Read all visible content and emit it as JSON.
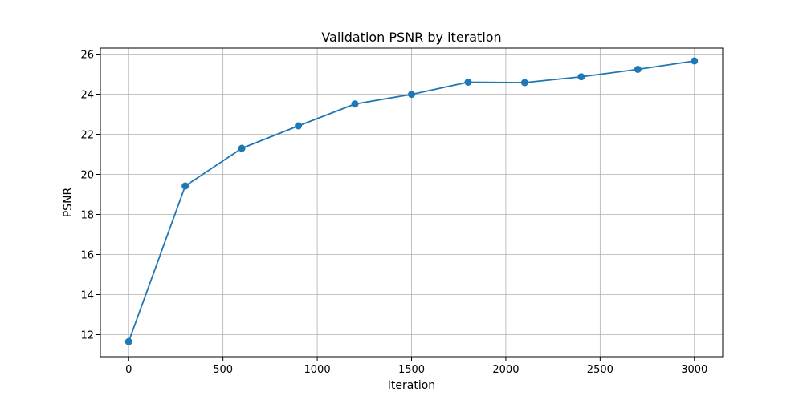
{
  "chart_data": {
    "type": "line",
    "title": "Validation PSNR by iteration",
    "xlabel": "Iteration",
    "ylabel": "PSNR",
    "xlim": [
      -150,
      3150
    ],
    "ylim": [
      10.9,
      26.3
    ],
    "xticks": [
      0,
      500,
      1000,
      1500,
      2000,
      2500,
      3000
    ],
    "yticks": [
      12,
      14,
      16,
      18,
      20,
      22,
      24,
      26
    ],
    "grid": true,
    "line_color": "#1f77b4",
    "marker": "circle",
    "series": [
      {
        "x": [
          0,
          300,
          600,
          900,
          1200,
          1500,
          1800,
          2100,
          2400,
          2700,
          3000
        ],
        "y": [
          11.65,
          19.42,
          21.3,
          22.42,
          23.51,
          23.99,
          24.6,
          24.58,
          24.87,
          25.24,
          25.66
        ]
      }
    ]
  }
}
